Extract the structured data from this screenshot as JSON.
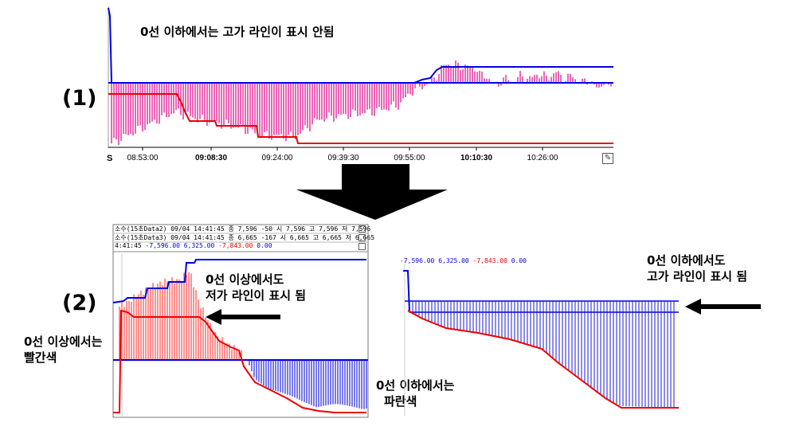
{
  "labels": {
    "panel1": "(1)",
    "panel2": "(2)"
  },
  "notes": {
    "top": "0선 이하에서는 고가 라인이 표시 안됨",
    "mid_line1": "0선 이상에서도",
    "mid_line2": "저가 라인이 표시 됨",
    "left_line1": "0선 이상에서는",
    "left_line2": "빨간색",
    "bottom_line1": "0선 이하에서는",
    "bottom_line2": "파란색",
    "right_line1": "0선 이하에서도",
    "right_line2": "고가 라인이 표시 됨"
  },
  "axis1": {
    "start": "S",
    "ticks": [
      "08:53:00",
      "09:08:30",
      "09:24:00",
      "09:39:30",
      "09:55:00",
      "10:10:30",
      "10:26:00"
    ],
    "bold": [
      false,
      true,
      false,
      false,
      false,
      true,
      false
    ],
    "button_icon": "pencil-icon"
  },
  "panel2_header": {
    "row1": "소수(15초Data2) 09/04 14:41:45  종 7,596 -50 시 7,596 고 7,596 저 7,596",
    "row2": "소수(15초Data3) 09/04 14:41:45  종 6,665 -167  시 6,665 고 6,665 저 6,665",
    "row3_time": "4:41:45",
    "row3_values": "-7,596.00 6,325.00 -7,843.00 0.00",
    "row3_value_a": "-7,596.00",
    "row3_value_b": "6,325.00",
    "row3_value_c": "-7,843.00",
    "row3_value_d": "0.00"
  },
  "colors": {
    "high": "#0000e6",
    "low": "#ee0000",
    "bars_magenta": "#e0259a",
    "bars_red": "#ff6060",
    "bars_blue": "#4040e0"
  },
  "chart_data": [
    {
      "type": "bar",
      "panel": "(1)",
      "x": [
        "08:53:00",
        "09:08:30",
        "09:24:00",
        "09:39:30",
        "09:55:00",
        "10:10:30",
        "10:26:00"
      ],
      "series": [
        {
          "values": [
            -0.3,
            -0.8,
            -1.2,
            -0.9,
            0.0,
            0.4,
            0.15
          ]
        }
      ]
    },
    {
      "type": "bar",
      "panel": "(2) left",
      "series": [
        {
          "values": [
            0.8,
            1.3,
            0.9,
            0.2,
            -0.5,
            -0.8
          ]
        }
      ]
    },
    {
      "type": "bar",
      "panel": "(2) right",
      "series": [
        {
          "values": [
            0.0,
            -0.3,
            -0.6,
            -1.0,
            -1.3,
            -1.35
          ]
        }
      ]
    }
  ]
}
